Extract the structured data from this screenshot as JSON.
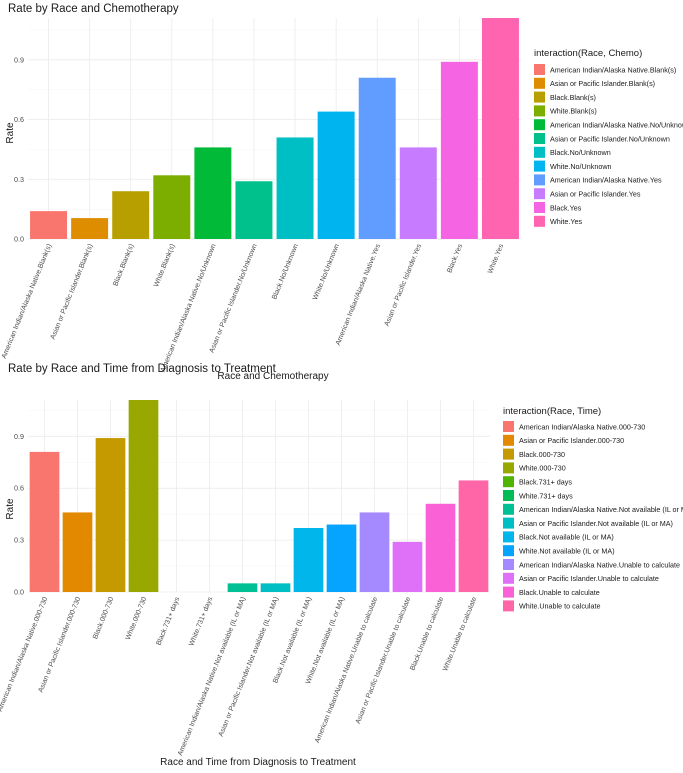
{
  "chart_data": [
    {
      "type": "bar",
      "title": "Rate by Race and Chemotherapy",
      "xlabel": "Race and Chemotherapy",
      "ylabel": "Rate",
      "ylim": [
        0,
        1.11
      ],
      "yticks": [
        0.0,
        0.3,
        0.6,
        0.9
      ],
      "ytick_labels": [
        "0.0",
        "0.3",
        "0.6",
        "0.9"
      ],
      "legend_title": "interaction(Race, Chemo)",
      "legend_position": "right",
      "categories": [
        "American Indian/Alaska Native.Blank(s)",
        "Asian or Pacific Islander.Blank(s)",
        "Black.Blank(s)",
        "White.Blank(s)",
        "American Indian/Alaska Native.No/Unknown",
        "Asian or Pacific Islander.No/Unknown",
        "Black.No/Unknown",
        "White.No/Unknown",
        "American Indian/Alaska Native.Yes",
        "Asian or Pacific Islander.Yes",
        "Black.Yes",
        "White.Yes"
      ],
      "values": [
        0.14,
        0.105,
        0.24,
        0.32,
        0.46,
        0.29,
        0.51,
        0.64,
        0.81,
        0.46,
        0.89,
        1.11
      ],
      "colors": [
        "#F8766D",
        "#DE8C00",
        "#B79F00",
        "#7CAE00",
        "#00BA38",
        "#00C08B",
        "#00BFC4",
        "#00B4F0",
        "#619CFF",
        "#C77CFF",
        "#F564E3",
        "#FF64B0"
      ]
    },
    {
      "type": "bar",
      "title": "Rate by Race and Time from Diagnosis to Treatment",
      "xlabel": "Race and Time from Diagnosis to Treatment",
      "ylabel": "Rate",
      "ylim": [
        0,
        1.11
      ],
      "yticks": [
        0.0,
        0.3,
        0.6,
        0.9
      ],
      "ytick_labels": [
        "0.0",
        "0.3",
        "0.6",
        "0.9"
      ],
      "legend_title": "interaction(Race, Time)",
      "legend_position": "right",
      "categories": [
        "American Indian/Alaska Native.000-730",
        "Asian or Pacific Islander.000-730",
        "Black.000-730",
        "White.000-730",
        "Black.731+ days",
        "White.731+ days",
        "American Indian/Alaska Native.Not available (IL or MA)",
        "Asian or Pacific Islander.Not available (IL or MA)",
        "Black.Not available (IL or MA)",
        "White.Not available (IL or MA)",
        "American Indian/Alaska Native.Unable to calculate",
        "Asian or Pacific Islander.Unable to calculate",
        "Black.Unable to calculate",
        "White.Unable to calculate"
      ],
      "values": [
        0.81,
        0.46,
        0.89,
        1.11,
        0.0,
        0.0,
        0.05,
        0.05,
        0.37,
        0.39,
        0.46,
        0.29,
        0.51,
        0.645
      ],
      "colors": [
        "#F8766D",
        "#E38900",
        "#C49A00",
        "#99A800",
        "#53B400",
        "#00BC56",
        "#00C094",
        "#00BFC4",
        "#00B6EB",
        "#06A4FF",
        "#A58AFF",
        "#DF70F8",
        "#FB61D7",
        "#FF66A8"
      ]
    }
  ]
}
